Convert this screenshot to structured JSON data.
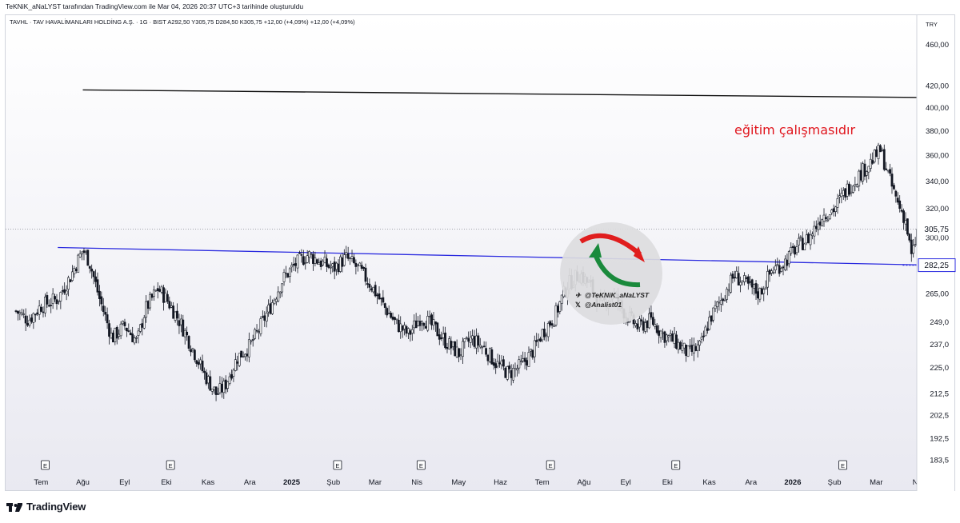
{
  "header": {
    "note": "TeKNiK_aNaLYST tarafından TradingView.com ile Mar 04, 2026 20:37 UTC+3 tarihinde oluşturuldu",
    "symbol_info": "TAVHL · TAV HAVALİMANLARI HOLDİNG A.Ş. · 1G · BIST   A292,50   Y305,75   D284,50   K305,75   +12,00 (+4,09%)   +12,00 (+4,09%)",
    "currency": "TRY"
  },
  "footer": {
    "brand": "TradingView"
  },
  "colors": {
    "candle": "#131722",
    "support_line": "#2a2adf",
    "resistance_line": "#111111",
    "annotation": "#e0161e",
    "price_tag_dark": "#7b7f8a",
    "price_tag_blue": "#2a2adf"
  },
  "chart_data": {
    "type": "candlestick",
    "scale": "log",
    "ylim": [
      178,
      490
    ],
    "y_ticks": [
      "460,00",
      "420,00",
      "400,00",
      "380,00",
      "360,00",
      "340,00",
      "320,00",
      "300,00",
      "265,00",
      "249,0",
      "237,0",
      "225,0",
      "212,5",
      "202,5",
      "192,5",
      "183,5"
    ],
    "x_labels": [
      "Tem",
      "Ağu",
      "Eyl",
      "Eki",
      "Kas",
      "Ara",
      "2025",
      "Şub",
      "Mar",
      "Nis",
      "May",
      "Haz",
      "Tem",
      "Ağu",
      "Eyl",
      "Eki",
      "Kas",
      "Ara",
      "2026",
      "Şub",
      "Mar",
      "Nis"
    ],
    "earnings_marker": "E",
    "earnings_months": [
      0.7,
      3.7,
      7.7,
      9.7,
      12.8,
      15.8,
      19.8
    ],
    "close_path": [
      [
        0,
        255
      ],
      [
        0.3,
        250
      ],
      [
        0.6,
        258
      ],
      [
        1.0,
        262
      ],
      [
        1.3,
        275
      ],
      [
        1.6,
        292
      ],
      [
        1.75,
        285
      ],
      [
        2.0,
        262
      ],
      [
        2.3,
        240
      ],
      [
        2.6,
        247
      ],
      [
        2.9,
        238
      ],
      [
        3.1,
        256
      ],
      [
        3.4,
        268
      ],
      [
        3.6,
        262
      ],
      [
        3.9,
        250
      ],
      [
        4.2,
        236
      ],
      [
        4.5,
        222
      ],
      [
        4.8,
        212
      ],
      [
        5.0,
        216
      ],
      [
        5.3,
        230
      ],
      [
        5.6,
        236
      ],
      [
        5.8,
        244
      ],
      [
        6.1,
        258
      ],
      [
        6.4,
        274
      ],
      [
        6.7,
        283
      ],
      [
        7.0,
        289
      ],
      [
        7.3,
        284
      ],
      [
        7.6,
        280
      ],
      [
        7.9,
        287
      ],
      [
        8.2,
        280
      ],
      [
        8.5,
        270
      ],
      [
        8.8,
        258
      ],
      [
        9.1,
        248
      ],
      [
        9.4,
        242
      ],
      [
        9.7,
        252
      ],
      [
        10.0,
        246
      ],
      [
        10.3,
        238
      ],
      [
        10.6,
        232
      ],
      [
        10.9,
        240
      ],
      [
        11.2,
        235
      ],
      [
        11.5,
        227
      ],
      [
        11.8,
        222
      ],
      [
        12.1,
        226
      ],
      [
        12.4,
        234
      ],
      [
        12.6,
        243
      ],
      [
        12.9,
        252
      ],
      [
        13.2,
        270
      ],
      [
        13.5,
        277
      ],
      [
        13.8,
        268
      ],
      [
        14.0,
        258
      ],
      [
        14.3,
        265
      ],
      [
        14.6,
        253
      ],
      [
        14.9,
        246
      ],
      [
        15.2,
        250
      ],
      [
        15.5,
        242
      ],
      [
        15.8,
        238
      ],
      [
        16.1,
        232
      ],
      [
        16.4,
        236
      ],
      [
        16.6,
        250
      ],
      [
        16.9,
        262
      ],
      [
        17.2,
        276
      ],
      [
        17.5,
        270
      ],
      [
        17.8,
        265
      ],
      [
        18.1,
        279
      ],
      [
        18.4,
        284
      ],
      [
        18.7,
        294
      ],
      [
        19.0,
        300
      ],
      [
        19.3,
        315
      ],
      [
        19.6,
        320
      ],
      [
        19.9,
        334
      ],
      [
        20.2,
        345
      ],
      [
        20.5,
        356
      ],
      [
        20.7,
        364
      ],
      [
        20.8,
        354
      ],
      [
        20.95,
        338
      ],
      [
        21.1,
        325
      ],
      [
        21.3,
        312
      ],
      [
        21.45,
        286
      ],
      [
        21.6,
        305.75
      ]
    ],
    "month_labels_bold": [
      "2025",
      "2026"
    ],
    "last_price": "305,75",
    "support_price": "282,25",
    "support_line": {
      "from": [
        1.0,
        293.5
      ],
      "to": [
        22.0,
        282.25
      ]
    },
    "resistance_line": {
      "from": [
        1.6,
        416
      ],
      "to": [
        22.0,
        409
      ]
    },
    "annotation": "eğitim çalışmasıdır"
  },
  "watermark": {
    "telegram_handle": "@TeKNiK_aNaLYST",
    "x_handle": "@Analist01"
  }
}
